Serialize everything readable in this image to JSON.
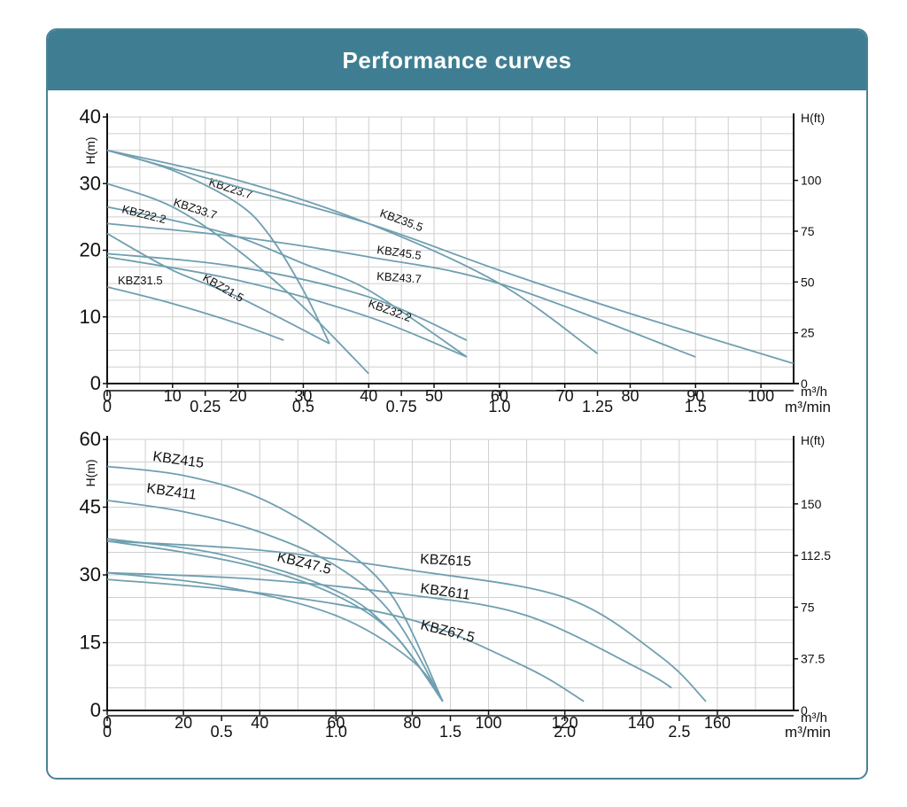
{
  "header": {
    "title": "Performance curves"
  },
  "colors": {
    "header_bg": "#3f7e92",
    "border": "#4a8296",
    "curve": "#6f9fb0",
    "grid": "#cfcfcf"
  },
  "chart_data": [
    {
      "type": "line",
      "ylabel": "H(m)",
      "y2label": "H(ft)",
      "x_unit": "m³/h",
      "x2_unit": "m³/min",
      "xlim": [
        0,
        105
      ],
      "ylim": [
        0,
        40
      ],
      "x_ticks": [
        "0",
        "10",
        "20",
        "30",
        "40",
        "50",
        "60",
        "70",
        "80",
        "90",
        "100"
      ],
      "y_ticks": [
        "0",
        "10",
        "20",
        "30",
        "40"
      ],
      "x2_ticks": [
        "0",
        "0.25",
        "0.5",
        "0.75",
        "1.0",
        "1.25",
        "1.5"
      ],
      "y2_ticks": [
        "0",
        "25",
        "50",
        "75",
        "100"
      ],
      "grid": true,
      "series": [
        {
          "name": "KBZ23.7",
          "x": [
            0,
            10,
            20,
            25,
            30,
            34
          ],
          "y": [
            35,
            32,
            27,
            22,
            14,
            6
          ]
        },
        {
          "name": "KBZ33.7",
          "x": [
            0,
            10,
            20,
            30,
            40
          ],
          "y": [
            30,
            26.5,
            20,
            11.5,
            1.5
          ]
        },
        {
          "name": "KBZ22.2",
          "x": [
            0,
            10,
            20,
            30,
            40,
            55
          ],
          "y": [
            26.5,
            24.5,
            22,
            18,
            14,
            4
          ]
        },
        {
          "name": "KBZ31.5",
          "x": [
            0,
            10,
            20,
            27
          ],
          "y": [
            14.5,
            12,
            9,
            6.5
          ]
        },
        {
          "name": "KBZ21.5",
          "x": [
            0,
            10,
            20,
            34
          ],
          "y": [
            22.5,
            17,
            13,
            6
          ]
        },
        {
          "name": "KBZ35.5",
          "x": [
            0,
            20,
            40,
            60,
            75
          ],
          "y": [
            35,
            30.5,
            24,
            15,
            4.5
          ]
        },
        {
          "name": "KBZ45.5",
          "x": [
            0,
            20,
            40,
            60,
            80,
            105
          ],
          "y": [
            35,
            29.5,
            24,
            17,
            10.5,
            3
          ]
        },
        {
          "name": "KBZ43.7",
          "x": [
            0,
            20,
            40,
            60,
            90
          ],
          "y": [
            24,
            22,
            19,
            15,
            4
          ]
        },
        {
          "name": "KBZ32.2",
          "x": [
            0,
            20,
            40,
            55
          ],
          "y": [
            19.5,
            17.5,
            13,
            6.5
          ]
        },
        {
          "name": "",
          "x": [
            0,
            20,
            40,
            55
          ],
          "y": [
            19,
            15.5,
            10,
            4
          ]
        }
      ]
    },
    {
      "type": "line",
      "ylabel": "H(m)",
      "y2label": "H(ft)",
      "x_unit": "m³/h",
      "x2_unit": "m³/min",
      "xlim": [
        0,
        180
      ],
      "ylim": [
        0,
        60
      ],
      "x_ticks": [
        "0",
        "20",
        "40",
        "60",
        "80",
        "100",
        "120",
        "140",
        "160"
      ],
      "y_ticks": [
        "0",
        "15",
        "30",
        "45",
        "60"
      ],
      "x2_ticks": [
        "0",
        "0.5",
        "1.0",
        "1.5",
        "2.0",
        "2.5"
      ],
      "y2_ticks": [
        "0",
        "37.5",
        "75",
        "112.5",
        "150"
      ],
      "grid": true,
      "series": [
        {
          "name": "KBZ415",
          "x": [
            0,
            20,
            40,
            60,
            75,
            88
          ],
          "y": [
            54,
            52,
            47,
            37,
            25,
            2
          ]
        },
        {
          "name": "KBZ411",
          "x": [
            0,
            20,
            40,
            60,
            75,
            88
          ],
          "y": [
            46.5,
            44,
            39.5,
            32,
            21,
            2
          ]
        },
        {
          "name": "KBZ47.5",
          "x": [
            0,
            20,
            40,
            60,
            75,
            88
          ],
          "y": [
            37.5,
            35,
            31.5,
            25.5,
            17,
            2
          ]
        },
        {
          "name": "",
          "x": [
            0,
            30,
            60,
            75,
            88
          ],
          "y": [
            38,
            34.5,
            26.5,
            17,
            2
          ]
        },
        {
          "name": "",
          "x": [
            0,
            30,
            60,
            80,
            88
          ],
          "y": [
            30.5,
            27.5,
            21,
            11,
            2
          ]
        },
        {
          "name": "KBZ615",
          "x": [
            0,
            40,
            80,
            120,
            145,
            157
          ],
          "y": [
            37.5,
            35.5,
            31,
            25,
            12,
            2
          ]
        },
        {
          "name": "KBZ611",
          "x": [
            0,
            40,
            80,
            110,
            140,
            148
          ],
          "y": [
            30.5,
            29,
            25.5,
            21,
            9,
            5
          ]
        },
        {
          "name": "KBZ67.5",
          "x": [
            0,
            40,
            80,
            110,
            125
          ],
          "y": [
            29,
            26,
            20,
            9.5,
            2
          ]
        }
      ]
    }
  ]
}
